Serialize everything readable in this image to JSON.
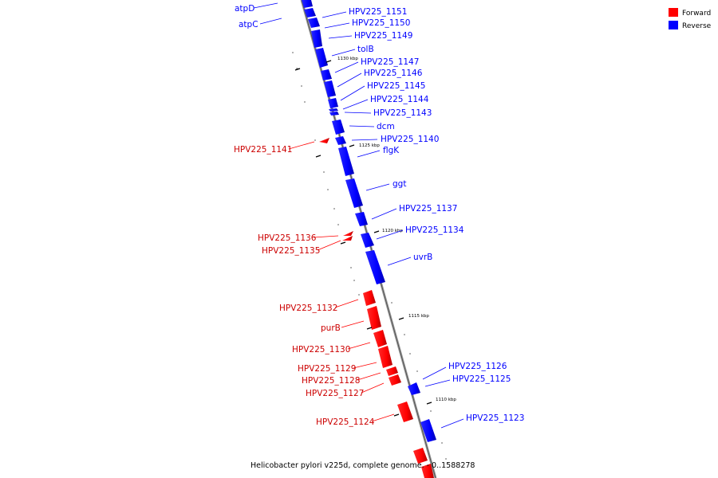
{
  "caption": "Helicobacter pylori v225d, complete genome. - 0..1588278",
  "legend": [
    {
      "label": "Forward",
      "color": "#ff0000"
    },
    {
      "label": "Reverse",
      "color": "#0000ff"
    }
  ],
  "colors": {
    "forward": "#ff0000",
    "reverse": "#0000ff",
    "backbone": "#7f7f7f"
  },
  "ticks": [
    "1130 kbp",
    "1125 kbp",
    "1120 kbp",
    "1115 kbp",
    "1110 kbp"
  ],
  "labels": {
    "atpD": "atpD",
    "atpC": "atpC",
    "g1151": "HPV225_1151",
    "g1150": "HPV225_1150",
    "g1149": "HPV225_1149",
    "tolB": "tolB",
    "g1147": "HPV225_1147",
    "g1146": "HPV225_1146",
    "g1145": "HPV225_1145",
    "g1144": "HPV225_1144",
    "g1143": "HPV225_1143",
    "dcm": "dcm",
    "g1140": "HPV225_1140",
    "g1141": "HPV225_1141",
    "flgK": "flgK",
    "ggt": "ggt",
    "g1137": "HPV225_1137",
    "g1136": "HPV225_1136",
    "g1134": "HPV225_1134",
    "g1135": "HPV225_1135",
    "uvrB": "uvrB",
    "g1132": "HPV225_1132",
    "purB": "purB",
    "g1130": "HPV225_1130",
    "g1129": "HPV225_1129",
    "g1126": "HPV225_1126",
    "g1128": "HPV225_1128",
    "g1125": "HPV225_1125",
    "g1127": "HPV225_1127",
    "g1123": "HPV225_1123",
    "g1124": "HPV225_1124"
  }
}
